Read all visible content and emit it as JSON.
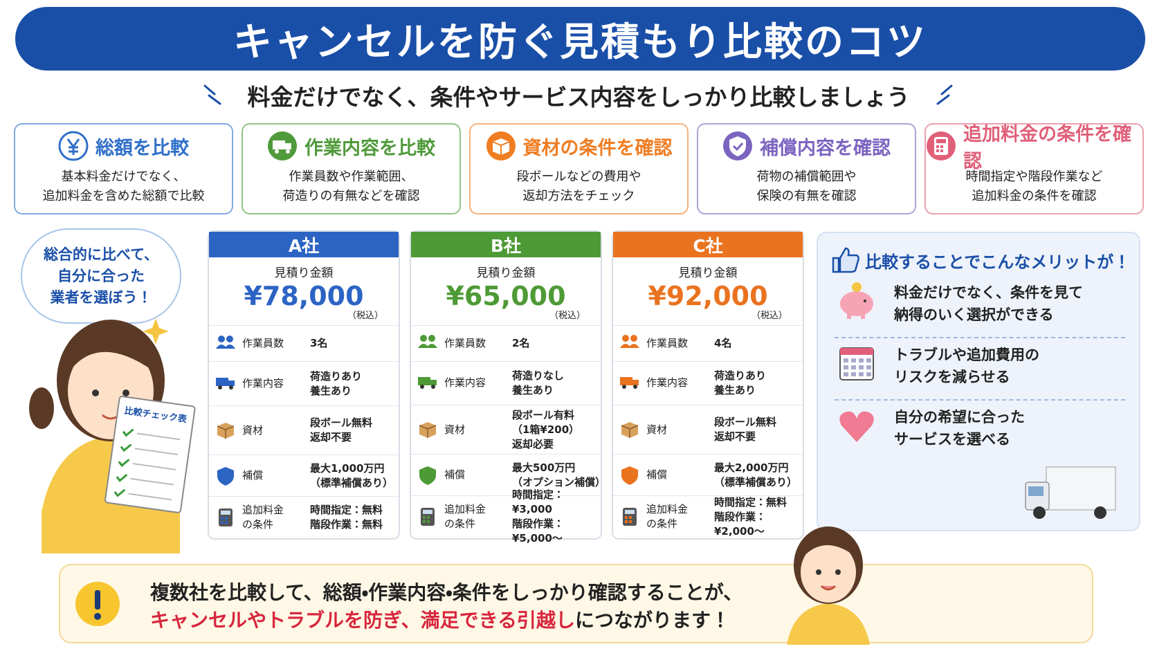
{
  "title": "キャンセルを防ぐ見積もり比較のコツ",
  "subtitle": "料金だけでなく、条件やサービス内容をしっかり比較しましょう",
  "tips": [
    {
      "title": "総額を比較",
      "lines": [
        "基本料金だけでなく、",
        "追加料金を含めた総額で比較"
      ]
    },
    {
      "title": "作業内容を比較",
      "lines": [
        "作業員数や作業範囲、",
        "荷造りの有無などを確認"
      ]
    },
    {
      "title": "資材の条件を確認",
      "lines": [
        "段ボールなどの費用や",
        "返却方法をチェック"
      ]
    },
    {
      "title": "補償内容を確認",
      "lines": [
        "荷物の補償範囲や",
        "保険の有無を確認"
      ]
    },
    {
      "title": "追加料金の条件を確認",
      "lines": [
        "時間指定や階段作業など",
        "追加料金の条件を確認"
      ]
    }
  ],
  "bubble": [
    "総合的に比べて、",
    "自分に合った",
    "業者を選ぼう！"
  ],
  "checklist_title": "比較チェック表",
  "price_label": "見積り金額",
  "tax_label": "（税込）",
  "row_labels": [
    [
      "作業員数"
    ],
    [
      "作業内容"
    ],
    [
      "資材"
    ],
    [
      "補償"
    ],
    [
      "追加料金",
      "の条件"
    ]
  ],
  "companies": [
    {
      "name": "A社",
      "price": "¥78,000",
      "rows": [
        [
          "3名"
        ],
        [
          "荷造りあり",
          "養生あり"
        ],
        [
          "段ボール無料",
          "返却不要"
        ],
        [
          "最大1,000万円",
          "（標準補償あり）"
        ],
        [
          "時間指定：無料",
          "階段作業：無料"
        ]
      ]
    },
    {
      "name": "B社",
      "price": "¥65,000",
      "rows": [
        [
          "2名"
        ],
        [
          "荷造りなし",
          "養生あり"
        ],
        [
          "段ボール有料",
          "（1箱¥200）",
          "返却必要"
        ],
        [
          "最大500万円",
          "（オプション補償）"
        ],
        [
          "時間指定：¥3,000",
          "階段作業：¥5,000〜"
        ]
      ]
    },
    {
      "name": "C社",
      "price": "¥92,000",
      "rows": [
        [
          "4名"
        ],
        [
          "荷造りあり",
          "養生あり"
        ],
        [
          "段ボール無料",
          "返却不要"
        ],
        [
          "最大2,000万円",
          "（標準補償あり）"
        ],
        [
          "時間指定：無料",
          "階段作業：¥2,000〜"
        ]
      ]
    }
  ],
  "merits": {
    "title": "比較することでこんなメリットが！",
    "items": [
      [
        "料金だけでなく、条件を見て",
        "納得のいく選択ができる"
      ],
      [
        "トラブルや追加費用の",
        "リスクを減らせる"
      ],
      [
        "自分の希望に合った",
        "サービスを選べる"
      ]
    ]
  },
  "footer": {
    "line1": "複数社を比較して、総額・作業内容・条件をしっかり確認することが、",
    "highlight": "キャンセルやトラブルを防ぎ、満足できる引越し",
    "rest": "につながります！"
  }
}
